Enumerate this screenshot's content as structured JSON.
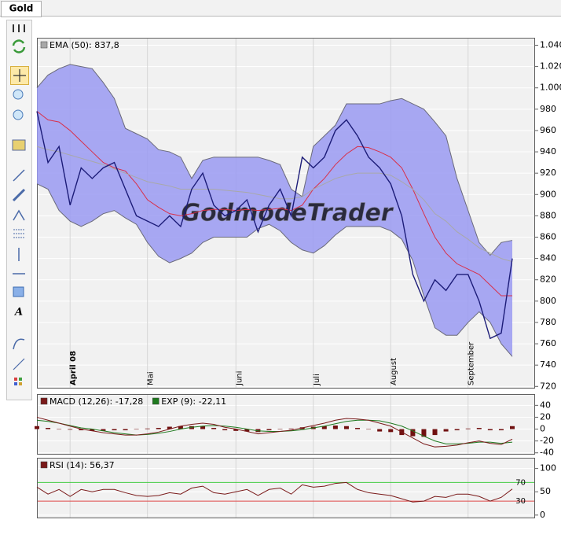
{
  "tab": "Gold",
  "chart_data": [
    {
      "type": "line",
      "categories": [
        null,
        null,
        null,
        "April 08",
        null,
        null,
        null,
        null,
        null,
        null,
        "Mai",
        null,
        null,
        null,
        null,
        null,
        null,
        null,
        "Juni",
        null,
        null,
        null,
        null,
        null,
        null,
        "Juli",
        null,
        null,
        null,
        null,
        null,
        null,
        "August",
        null,
        null,
        null,
        null,
        null,
        null,
        "September",
        null,
        null,
        null,
        null
      ],
      "series": [
        {
          "color": "#1c1c78",
          "values": [
            978,
            930,
            945,
            890,
            925,
            915,
            925,
            930,
            905,
            880,
            875,
            870,
            880,
            870,
            905,
            920,
            890,
            880,
            885,
            895,
            865,
            890,
            905,
            880,
            935,
            925,
            935,
            960,
            970,
            955,
            935,
            925,
            910,
            880,
            825,
            800,
            820,
            810,
            825,
            825,
            800,
            765,
            770,
            840
          ]
        },
        {
          "name": "EMA (50): 837,8",
          "color": "#a8a8a8",
          "values": [
            945,
            942,
            940,
            937,
            934,
            931,
            928,
            924,
            920,
            916,
            912,
            910,
            908,
            905,
            905,
            905,
            905,
            904,
            903,
            902,
            900,
            898,
            896,
            896,
            898,
            905,
            910,
            915,
            918,
            920,
            920,
            920,
            918,
            912,
            905,
            895,
            882,
            875,
            865,
            858,
            850,
            845,
            840,
            837
          ]
        },
        {
          "color": "#d8304a",
          "values": [
            978,
            970,
            968,
            960,
            950,
            940,
            930,
            925,
            922,
            910,
            895,
            888,
            882,
            880,
            882,
            885,
            886,
            886,
            885,
            886,
            885,
            886,
            887,
            885,
            890,
            905,
            915,
            928,
            938,
            945,
            944,
            940,
            935,
            925,
            905,
            882,
            860,
            845,
            835,
            830,
            825,
            815,
            805,
            805
          ]
        }
      ],
      "band": {
        "color": "#9a9af2",
        "edge": "#6a6a7a",
        "upper": [
          1000,
          1012,
          1018,
          1022,
          1020,
          1018,
          1005,
          990,
          962,
          957,
          952,
          942,
          940,
          935,
          915,
          932,
          935,
          935,
          935,
          935,
          935,
          932,
          928,
          905,
          898,
          945,
          955,
          965,
          985,
          985,
          985,
          985,
          988,
          990,
          985,
          980,
          968,
          955,
          915,
          885,
          855,
          843,
          855,
          857
        ],
        "lower": [
          910,
          905,
          885,
          875,
          870,
          875,
          882,
          885,
          878,
          872,
          855,
          842,
          836,
          840,
          845,
          855,
          860,
          860,
          860,
          860,
          868,
          872,
          866,
          855,
          848,
          845,
          852,
          862,
          870,
          870,
          870,
          870,
          866,
          858,
          838,
          805,
          775,
          768,
          768,
          780,
          790,
          780,
          760,
          748
        ]
      },
      "watermark": "GodmodeTrader",
      "ylim": [
        718,
        1047
      ],
      "yticks": [
        {
          "value": 1040,
          "label": "1.040"
        },
        {
          "value": 1020,
          "label": "1.020"
        },
        {
          "value": 1000,
          "label": "1.000"
        },
        980,
        960,
        940,
        920,
        900,
        880,
        860,
        840,
        820,
        800,
        780,
        760,
        740,
        720
      ],
      "grid": true
    },
    {
      "type": "line",
      "series": [
        {
          "name": "MACD (12,26): -17,28",
          "color": "#7a1a1a",
          "values": [
            20,
            15,
            10,
            5,
            0,
            -3,
            -6,
            -8,
            -10,
            -10,
            -8,
            -5,
            0,
            5,
            8,
            10,
            8,
            3,
            0,
            -4,
            -8,
            -6,
            -4,
            -2,
            2,
            6,
            10,
            15,
            18,
            17,
            15,
            10,
            5,
            -5,
            -15,
            -25,
            -30,
            -29,
            -27,
            -23,
            -20,
            -24,
            -26,
            -17
          ]
        },
        {
          "name": "EXP (9): -22,11",
          "color": "#1f7a1f",
          "values": [
            15,
            13,
            10,
            6,
            2,
            0,
            -3,
            -6,
            -8,
            -10,
            -9,
            -7,
            -4,
            0,
            3,
            5,
            6,
            5,
            3,
            0,
            -3,
            -4,
            -4,
            -3,
            -1,
            2,
            5,
            9,
            13,
            15,
            15,
            14,
            10,
            5,
            -3,
            -12,
            -20,
            -25,
            -25,
            -24,
            -22,
            -22,
            -24,
            -22
          ]
        }
      ],
      "histogram": {
        "color": "#701010",
        "values": [
          5,
          2,
          0,
          -1,
          -2,
          -3,
          -3,
          -2,
          -2,
          0,
          1,
          2,
          4,
          5,
          5,
          5,
          2,
          -2,
          -3,
          -4,
          -5,
          -2,
          0,
          1,
          3,
          4,
          5,
          6,
          5,
          2,
          0,
          -4,
          -5,
          -10,
          -12,
          -13,
          -10,
          -4,
          -2,
          1,
          2,
          -2,
          -2,
          5
        ]
      },
      "ylim": [
        -43,
        59
      ],
      "yticks": [
        40,
        20,
        0,
        -20,
        -40
      ],
      "grid": true
    },
    {
      "type": "line",
      "series": [
        {
          "name": "RSI (14): 56,37",
          "color": "#7a1a1a",
          "values": [
            60,
            45,
            55,
            40,
            55,
            50,
            55,
            55,
            48,
            42,
            40,
            42,
            48,
            45,
            58,
            62,
            48,
            45,
            50,
            55,
            42,
            55,
            58,
            45,
            65,
            60,
            62,
            68,
            70,
            55,
            48,
            45,
            42,
            35,
            28,
            30,
            40,
            38,
            45,
            45,
            40,
            30,
            38,
            56
          ]
        }
      ],
      "levels": [
        70,
        30
      ],
      "level_colors": [
        "#44cc44",
        "#e04848"
      ],
      "ylim": [
        -7,
        123
      ],
      "yticks": [
        100,
        50,
        0
      ],
      "grid": true
    }
  ]
}
